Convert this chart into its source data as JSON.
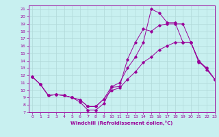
{
  "title": "",
  "xlabel": "Windchill (Refroidissement éolien,°C)",
  "ylabel": "",
  "background_color": "#c8f0f0",
  "line_color": "#990099",
  "grid_color": "#b0d8d8",
  "xlim": [
    -0.5,
    23
  ],
  "ylim": [
    7,
    21.5
  ],
  "xticks": [
    0,
    1,
    2,
    3,
    4,
    5,
    6,
    7,
    8,
    9,
    10,
    11,
    12,
    13,
    14,
    15,
    16,
    17,
    18,
    19,
    20,
    21,
    22,
    23
  ],
  "yticks": [
    7,
    8,
    9,
    10,
    11,
    12,
    13,
    14,
    15,
    16,
    17,
    18,
    19,
    20,
    21
  ],
  "line1_x": [
    0,
    1,
    2,
    3,
    4,
    5,
    6,
    7,
    8,
    9,
    10,
    11,
    12,
    13,
    14,
    15,
    16,
    17,
    18,
    19,
    20,
    21,
    22,
    23
  ],
  "line1_y": [
    11.8,
    10.8,
    9.3,
    9.4,
    9.3,
    9.0,
    8.4,
    7.3,
    7.3,
    8.2,
    10.4,
    10.5,
    14.2,
    16.5,
    18.3,
    18.0,
    18.8,
    19.0,
    19.0,
    19.0,
    16.5,
    14.0,
    12.8,
    11.5
  ],
  "line2_x": [
    0,
    1,
    2,
    3,
    4,
    5,
    6,
    7,
    8,
    9,
    10,
    11,
    12,
    13,
    14,
    15,
    16,
    17,
    18,
    19,
    20,
    21,
    22,
    23
  ],
  "line2_y": [
    11.8,
    10.8,
    9.3,
    9.4,
    9.3,
    9.0,
    8.7,
    7.8,
    7.8,
    8.8,
    10.5,
    11.0,
    13.0,
    14.5,
    16.5,
    21.0,
    20.5,
    19.2,
    19.2,
    16.5,
    16.5,
    13.8,
    13.0,
    11.5
  ],
  "line3_x": [
    0,
    1,
    2,
    3,
    4,
    5,
    6,
    7,
    8,
    9,
    10,
    11,
    12,
    13,
    14,
    15,
    16,
    17,
    18,
    19,
    20,
    21,
    22,
    23
  ],
  "line3_y": [
    11.8,
    10.8,
    9.3,
    9.4,
    9.3,
    9.0,
    8.7,
    7.8,
    7.8,
    8.8,
    10.0,
    10.3,
    11.5,
    12.5,
    13.8,
    14.5,
    15.5,
    16.0,
    16.5,
    16.5,
    16.5,
    14.0,
    13.0,
    11.5
  ]
}
